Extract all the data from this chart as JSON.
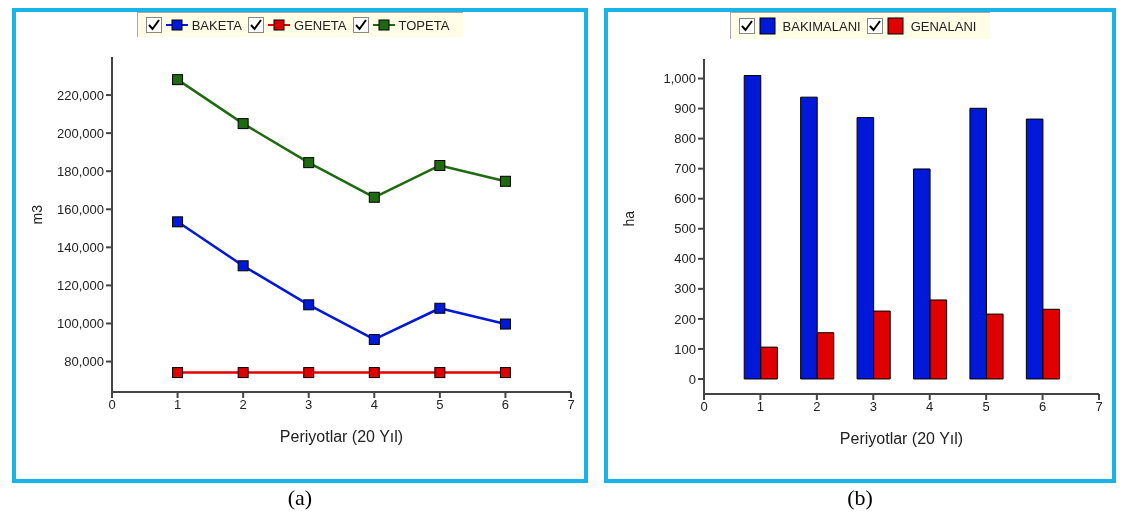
{
  "chart_data": [
    {
      "type": "line",
      "xlabel": "Periyotlar (20 Yıl)",
      "ylabel": "m3",
      "x": [
        1,
        2,
        3,
        4,
        5,
        6
      ],
      "xlim": [
        0,
        7
      ],
      "xticks": [
        0,
        1,
        2,
        3,
        4,
        5,
        6,
        7
      ],
      "ylim": [
        64000,
        240000
      ],
      "yticks": [
        {
          "value": 80000,
          "label": "80,000"
        },
        {
          "value": 100000,
          "label": "100,000"
        },
        {
          "value": 120000,
          "label": "120,000"
        },
        {
          "value": 140000,
          "label": "140,000"
        },
        {
          "value": 160000,
          "label": "160,000"
        },
        {
          "value": 180000,
          "label": "180,000"
        },
        {
          "value": 200000,
          "label": "200,000"
        },
        {
          "value": 220000,
          "label": "220,000"
        }
      ],
      "series": [
        {
          "name": "BAKETA",
          "color": "#0018d8",
          "values": [
            153400,
            130300,
            109800,
            91600,
            108000,
            99700
          ]
        },
        {
          "name": "GENETA",
          "color": "#e00000",
          "values": [
            74200,
            74200,
            74200,
            74200,
            74200,
            74200
          ]
        },
        {
          "name": "TOPETA",
          "color": "#1f6a10",
          "values": [
            228100,
            205000,
            184500,
            166300,
            183000,
            174700
          ]
        }
      ],
      "marker": "square",
      "legend": "top",
      "annotations": [
        "(a)"
      ]
    },
    {
      "type": "bar",
      "xlabel": "Periyotlar (20 Yıl)",
      "ylabel": "ha",
      "x": [
        1,
        2,
        3,
        4,
        5,
        6
      ],
      "xlim": [
        0,
        7
      ],
      "xticks": [
        0,
        1,
        2,
        3,
        4,
        5,
        6,
        7
      ],
      "ylim": [
        -50,
        1065
      ],
      "yticks": [
        0,
        100,
        200,
        300,
        400,
        500,
        600,
        700,
        800,
        900,
        {
          "value": 1000,
          "label": "1,000"
        }
      ],
      "series": [
        {
          "name": "BAKIMALANI",
          "color": "#0018d8",
          "values": [
            1010,
            938,
            870,
            699,
            901,
            865
          ]
        },
        {
          "name": "GENALANI",
          "color": "#e00000",
          "values": [
            106,
            154,
            226,
            263,
            216,
            232
          ]
        }
      ],
      "legend": "top",
      "annotations": [
        "(b)"
      ]
    }
  ]
}
